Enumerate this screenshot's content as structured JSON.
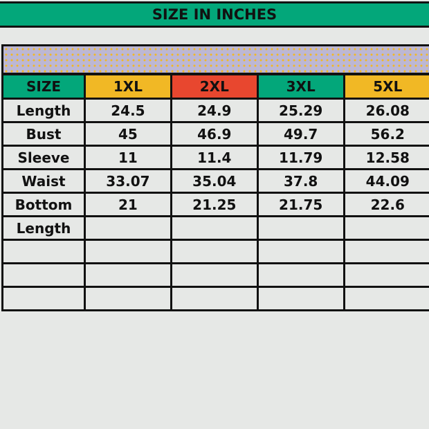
{
  "title": "SIZE IN INCHES",
  "colors": {
    "green": "#03a77a",
    "yellow": "#f1b825",
    "red": "#e8472f",
    "band": "#bcb7d4"
  },
  "headers": [
    {
      "label": "SIZE",
      "color": "#03a77a"
    },
    {
      "label": "1XL",
      "color": "#f1b825"
    },
    {
      "label": "2XL",
      "color": "#e8472f"
    },
    {
      "label": "3XL",
      "color": "#03a77a"
    },
    {
      "label": "5XL",
      "color": "#f1b825"
    }
  ],
  "rows": [
    [
      "Length",
      "24.5",
      "24.9",
      "25.29",
      "26.08"
    ],
    [
      "Bust",
      "45",
      "46.9",
      "49.7",
      "56.2"
    ],
    [
      "Sleeve",
      "11",
      "11.4",
      "11.79",
      "12.58"
    ],
    [
      "Waist",
      "33.07",
      "35.04",
      "37.8",
      "44.09"
    ],
    [
      "Bottom",
      "21",
      "21.25",
      "21.75",
      "22.6"
    ],
    [
      "Length",
      "",
      "",
      "",
      ""
    ],
    [
      "",
      "",
      "",
      "",
      ""
    ],
    [
      "",
      "",
      "",
      "",
      ""
    ],
    [
      "",
      "",
      "",
      "",
      ""
    ]
  ]
}
